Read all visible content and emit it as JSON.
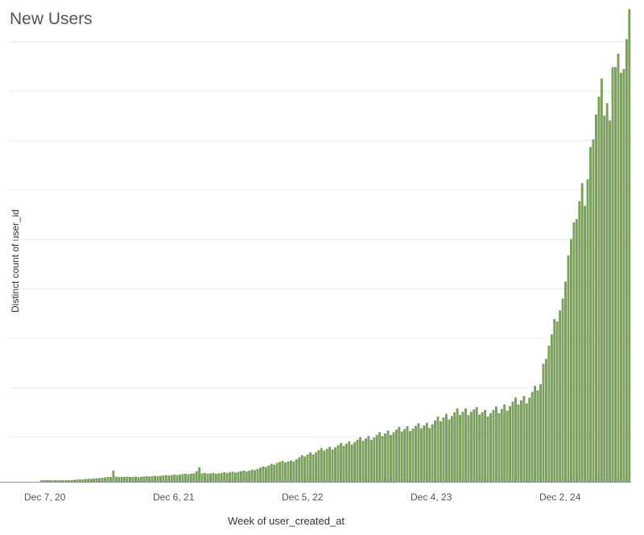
{
  "chart_data": {
    "type": "bar",
    "title": "New Users",
    "xlabel": "Week of user_created_at",
    "ylabel": "Distinct count of user_id",
    "x_tick_labels": [
      "Dec 7, 20",
      "Dec 6, 21",
      "Dec 5, 22",
      "Dec 4, 23",
      "Dec 2, 24"
    ],
    "grid": true,
    "legend": "none",
    "colors": {
      "bar": "#7fa35f",
      "bar_edge": "#4f7a35",
      "grid": "#ececec",
      "axis": "#999999"
    },
    "ylim": [
      0,
      100
    ],
    "anchors": [
      [
        0,
        0.3
      ],
      [
        10,
        0.3
      ],
      [
        20,
        0.7
      ],
      [
        25,
        1.0
      ],
      [
        26,
        2.3
      ],
      [
        27,
        1.0
      ],
      [
        35,
        1.0
      ],
      [
        45,
        1.3
      ],
      [
        50,
        1.5
      ],
      [
        55,
        1.7
      ],
      [
        57,
        3.0
      ],
      [
        58,
        1.7
      ],
      [
        65,
        1.8
      ],
      [
        75,
        2.3
      ],
      [
        80,
        3.0
      ],
      [
        85,
        4.0
      ],
      [
        90,
        4.3
      ],
      [
        95,
        5.5
      ],
      [
        100,
        6.5
      ],
      [
        105,
        7.2
      ],
      [
        110,
        8.0
      ],
      [
        115,
        8.8
      ],
      [
        120,
        9.5
      ],
      [
        125,
        10.3
      ],
      [
        130,
        11.0
      ],
      [
        135,
        11.5
      ],
      [
        140,
        12.0
      ],
      [
        145,
        13.5
      ],
      [
        150,
        14.5
      ],
      [
        155,
        15.0
      ],
      [
        160,
        14.5
      ],
      [
        165,
        15.0
      ],
      [
        170,
        16.5
      ],
      [
        175,
        17.5
      ],
      [
        178,
        19.0
      ],
      [
        180,
        21.0
      ],
      [
        182,
        27.0
      ],
      [
        185,
        33.0
      ],
      [
        187,
        36.0
      ],
      [
        188,
        38.5
      ],
      [
        190,
        48.0
      ],
      [
        193,
        56.0
      ],
      [
        195,
        62.0
      ],
      [
        197,
        64.0
      ],
      [
        198,
        70.0
      ],
      [
        200,
        78.0
      ],
      [
        202,
        84.0
      ],
      [
        204,
        80.0
      ],
      [
        206,
        86.0
      ],
      [
        208,
        90.0
      ],
      [
        210,
        88.0
      ],
      [
        212,
        99.0
      ]
    ],
    "dips": {
      "26": 2.3,
      "57": 3.0,
      "180": 20.5,
      "184": 31.0,
      "188": 38.5,
      "196": 58.0,
      "199": 72.0,
      "203": 77.0,
      "205": 76.0,
      "209": 86.0
    }
  }
}
